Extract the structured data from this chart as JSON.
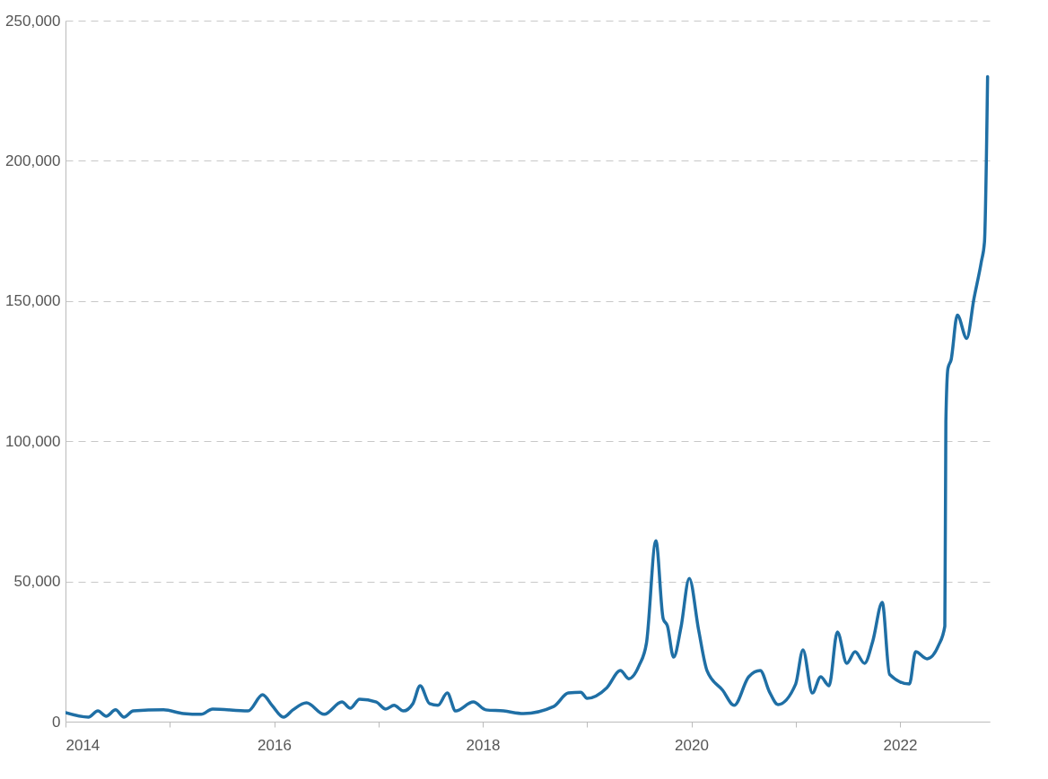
{
  "chart_data": {
    "type": "line",
    "x": [
      2014.0,
      2014.22,
      2014.31,
      2014.39,
      2014.48,
      2014.56,
      2014.65,
      2014.94,
      2015.13,
      2015.3,
      2015.41,
      2015.75,
      2015.89,
      2015.98,
      2016.09,
      2016.18,
      2016.31,
      2016.48,
      2016.65,
      2016.73,
      2016.82,
      2016.98,
      2017.07,
      2017.15,
      2017.24,
      2017.33,
      2017.4,
      2017.49,
      2017.57,
      2017.66,
      2017.74,
      2017.91,
      2018.03,
      2018.2,
      2018.39,
      2018.68,
      2018.82,
      2018.94,
      2019.0,
      2019.19,
      2019.32,
      2019.4,
      2019.5,
      2019.57,
      2019.66,
      2019.73,
      2019.77,
      2019.83,
      2019.9,
      2019.98,
      2020.07,
      2020.15,
      2020.3,
      2020.41,
      2020.55,
      2020.66,
      2020.75,
      2020.83,
      2021.0,
      2021.07,
      2021.16,
      2021.24,
      2021.32,
      2021.4,
      2021.49,
      2021.57,
      2021.66,
      2021.74,
      2021.83,
      2021.9,
      2022.09,
      2022.15,
      2022.26,
      2022.37,
      2022.43,
      2022.44,
      2022.46,
      2022.49,
      2022.55,
      2022.64,
      2022.71,
      2022.78,
      2022.81,
      2022.84
    ],
    "series": [
      {
        "color": "#1f6fa5",
        "values": [
          3200,
          1600,
          3800,
          1900,
          4200,
          1600,
          3800,
          4200,
          2900,
          2600,
          4500,
          3800,
          9600,
          5800,
          1600,
          4200,
          6700,
          2600,
          7000,
          4800,
          8000,
          7000,
          4500,
          5800,
          3800,
          6400,
          12800,
          6400,
          5800,
          10200,
          3800,
          7000,
          4200,
          3800,
          2900,
          5400,
          10200,
          10500,
          8300,
          12100,
          18200,
          15300,
          20100,
          28100,
          64500,
          36700,
          34200,
          23000,
          33500,
          51100,
          32600,
          18200,
          11200,
          5800,
          16000,
          18200,
          10500,
          6100,
          13400,
          25600,
          10200,
          16000,
          12800,
          32000,
          20800,
          24900,
          20800,
          28800,
          42500,
          16900,
          13400,
          24900,
          22400,
          27200,
          34000,
          107000,
          126000,
          129000,
          145000,
          136700,
          151000,
          164000,
          171000,
          230000
        ]
      }
    ],
    "xlim": [
      2014,
      2022.86
    ],
    "xticks": [
      2014,
      {
        "value": 2015,
        "label": null
      },
      2016,
      {
        "value": 2017,
        "label": null
      },
      2018,
      {
        "value": 2019,
        "label": null
      },
      2020,
      {
        "value": 2021,
        "label": null
      },
      2022
    ],
    "ylim": [
      0,
      250000
    ],
    "yticks": [
      0,
      {
        "value": 50000,
        "label": "50,000"
      },
      {
        "value": 100000,
        "label": "100,000"
      },
      {
        "value": 150000,
        "label": "150,000"
      },
      {
        "value": 200000,
        "label": "200,000"
      },
      {
        "value": 250000,
        "label": "250,000"
      }
    ],
    "grid": "y",
    "marker": "none",
    "line_style": "solid"
  }
}
